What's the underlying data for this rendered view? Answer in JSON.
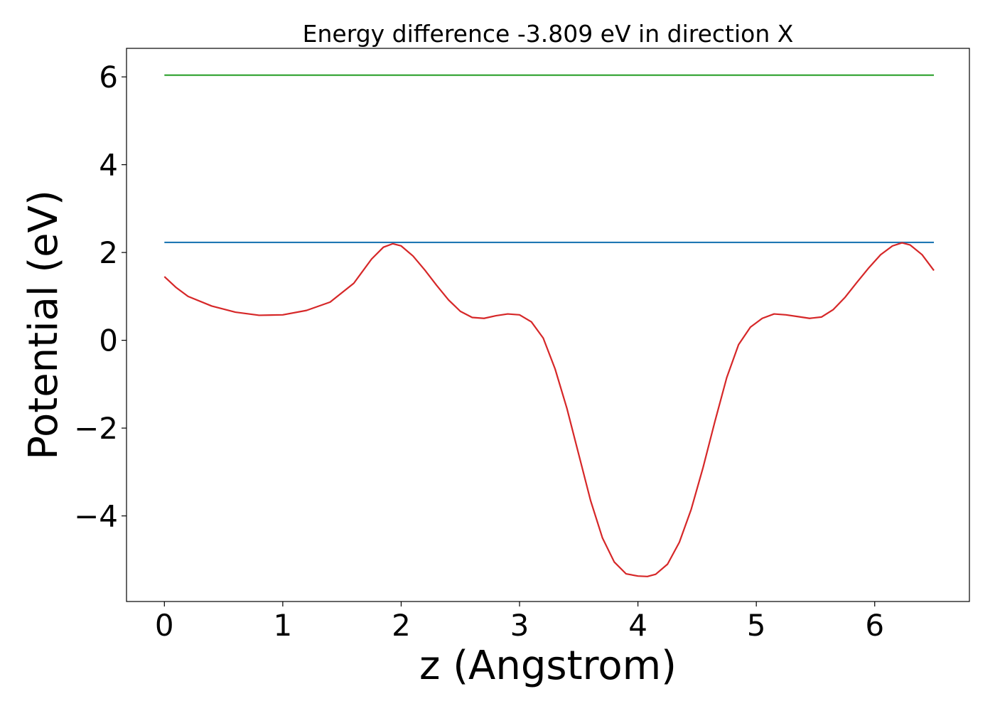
{
  "chart_data": {
    "type": "line",
    "title": "Energy difference -3.809 eV in direction X",
    "xlabel": "z (Angstrom)",
    "ylabel": "Potential (eV)",
    "xlim": [
      -0.32,
      6.8
    ],
    "ylim": [
      -5.95,
      6.65
    ],
    "xticks": [
      0,
      1,
      2,
      3,
      4,
      5,
      6
    ],
    "xtick_labels": [
      "0",
      "1",
      "2",
      "3",
      "4",
      "5",
      "6"
    ],
    "yticks": [
      -4,
      -2,
      0,
      2,
      4,
      6
    ],
    "ytick_labels": [
      "−4",
      "−2",
      "0",
      "2",
      "4",
      "6"
    ],
    "grid": false,
    "series": [
      {
        "color": "#2ca02c",
        "x": [
          0,
          6.5
        ],
        "y": [
          6.04,
          6.04
        ]
      },
      {
        "color": "#1f77b4",
        "x": [
          0,
          6.5
        ],
        "y": [
          2.23,
          2.23
        ]
      },
      {
        "color": "#d62728",
        "x": [
          0,
          0.1,
          0.2,
          0.4,
          0.6,
          0.8,
          1.0,
          1.2,
          1.4,
          1.6,
          1.75,
          1.85,
          1.93,
          2.0,
          2.1,
          2.2,
          2.3,
          2.4,
          2.5,
          2.6,
          2.7,
          2.8,
          2.9,
          3.0,
          3.1,
          3.2,
          3.3,
          3.4,
          3.5,
          3.6,
          3.7,
          3.8,
          3.9,
          4.0,
          4.08,
          4.15,
          4.25,
          4.35,
          4.45,
          4.55,
          4.65,
          4.75,
          4.85,
          4.95,
          5.05,
          5.15,
          5.25,
          5.35,
          5.45,
          5.55,
          5.65,
          5.75,
          5.85,
          5.95,
          6.05,
          6.15,
          6.23,
          6.3,
          6.4,
          6.5
        ],
        "y": [
          1.45,
          1.2,
          1.0,
          0.78,
          0.64,
          0.57,
          0.58,
          0.68,
          0.87,
          1.3,
          1.85,
          2.12,
          2.2,
          2.15,
          1.92,
          1.6,
          1.25,
          0.92,
          0.66,
          0.52,
          0.5,
          0.56,
          0.6,
          0.58,
          0.42,
          0.05,
          -0.65,
          -1.55,
          -2.6,
          -3.65,
          -4.5,
          -5.05,
          -5.32,
          -5.37,
          -5.38,
          -5.33,
          -5.1,
          -4.6,
          -3.85,
          -2.9,
          -1.85,
          -0.85,
          -0.1,
          0.3,
          0.5,
          0.6,
          0.58,
          0.54,
          0.5,
          0.53,
          0.7,
          0.98,
          1.32,
          1.65,
          1.95,
          2.15,
          2.22,
          2.17,
          1.95,
          1.59
        ]
      }
    ]
  }
}
